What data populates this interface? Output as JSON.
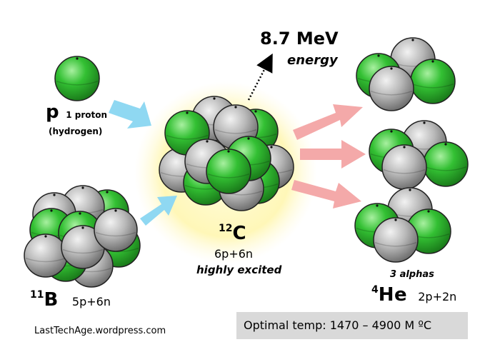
{
  "energy": {
    "value": "8.7 MeV",
    "label": "energy"
  },
  "proton": {
    "symbol": "p",
    "count_label": "1 proton",
    "name": "(hydrogen)"
  },
  "boron": {
    "mass": "11",
    "symbol": "B",
    "composition": "5p+6n"
  },
  "carbon": {
    "mass": "12",
    "symbol": "C",
    "composition": "6p+6n",
    "state": "highly excited"
  },
  "alphas": {
    "label": "3 alphas",
    "mass": "4",
    "symbol": "He",
    "composition": "2p+2n"
  },
  "footer": {
    "source": "LastTechAge.wordpress.com",
    "optimal_temp": "Optimal temp: 1470 – 4900 M ºC"
  },
  "colors": {
    "proton_green": "#33cc33",
    "neutron_gray": "#b5b5b5",
    "glow_yellow": "#fff9c2",
    "input_arrow": "#8fd8f2",
    "output_arrow": "#f4a9a9",
    "footer_box": "#d9d9d9"
  }
}
